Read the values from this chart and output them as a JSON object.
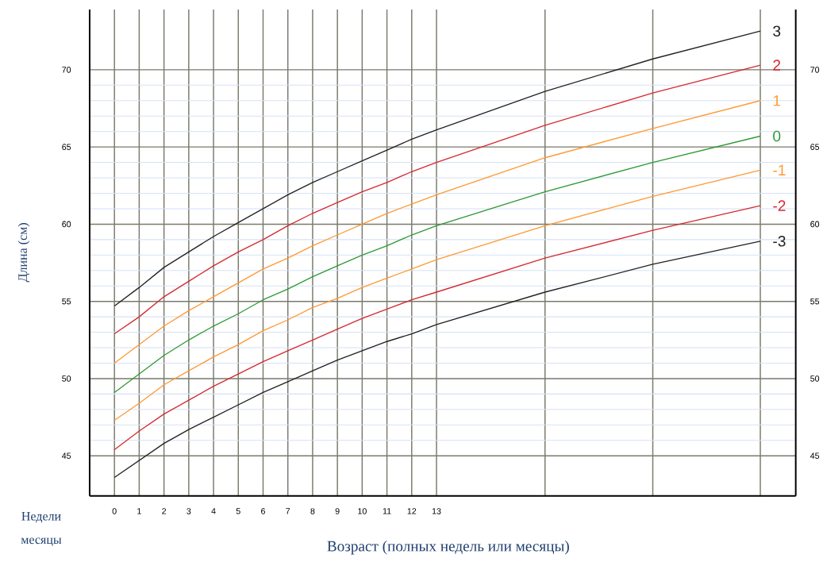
{
  "chart_data": {
    "type": "line",
    "xlabel": "Возраст (полных недель или месяцы)",
    "ylabel": "Длина (см)",
    "annotations": [
      "Недели",
      "месяцы"
    ],
    "x": [
      0,
      1,
      2,
      3,
      4,
      5,
      6,
      7,
      8,
      9,
      10,
      11,
      12,
      13,
      17.38,
      21.73,
      26.07
    ],
    "series": [
      {
        "name": "3",
        "color": "#222222",
        "values": [
          54.7,
          55.9,
          57.2,
          58.2,
          59.2,
          60.1,
          61.0,
          61.9,
          62.7,
          63.4,
          64.1,
          64.8,
          65.5,
          66.1,
          68.6,
          70.7,
          72.5
        ]
      },
      {
        "name": "2",
        "color": "#d42a30",
        "values": [
          52.9,
          54.0,
          55.3,
          56.3,
          57.3,
          58.2,
          59.0,
          59.9,
          60.7,
          61.4,
          62.1,
          62.7,
          63.4,
          64.0,
          66.4,
          68.5,
          70.3
        ]
      },
      {
        "name": "1",
        "color": "#ff9933",
        "values": [
          51.0,
          52.2,
          53.4,
          54.4,
          55.3,
          56.2,
          57.1,
          57.8,
          58.6,
          59.3,
          60.0,
          60.7,
          61.3,
          61.9,
          64.3,
          66.2,
          68.0
        ]
      },
      {
        "name": "0",
        "color": "#2e9a34",
        "values": [
          49.1,
          50.3,
          51.5,
          52.5,
          53.4,
          54.2,
          55.1,
          55.8,
          56.6,
          57.3,
          58.0,
          58.6,
          59.3,
          59.9,
          62.1,
          64.0,
          65.7
        ]
      },
      {
        "name": "-1",
        "color": "#ff9933",
        "values": [
          47.3,
          48.4,
          49.6,
          50.5,
          51.4,
          52.2,
          53.1,
          53.8,
          54.6,
          55.2,
          55.9,
          56.5,
          57.1,
          57.7,
          59.9,
          61.8,
          63.5
        ]
      },
      {
        "name": "-2",
        "color": "#d42a30",
        "values": [
          45.4,
          46.6,
          47.7,
          48.6,
          49.5,
          50.3,
          51.1,
          51.8,
          52.5,
          53.2,
          53.9,
          54.5,
          55.1,
          55.6,
          57.8,
          59.6,
          61.2
        ]
      },
      {
        "name": "-3",
        "color": "#222222",
        "values": [
          43.6,
          44.7,
          45.8,
          46.7,
          47.5,
          48.3,
          49.1,
          49.8,
          50.5,
          51.2,
          51.8,
          52.4,
          52.9,
          53.5,
          55.6,
          57.4,
          58.9
        ]
      }
    ],
    "xlim": [
      -1,
      27.5
    ],
    "xticks": [
      0,
      1,
      2,
      3,
      4,
      5,
      6,
      7,
      8,
      9,
      10,
      11,
      12,
      13,
      {
        "value": 17.38,
        "label": null
      },
      {
        "value": 21.73,
        "label": null
      },
      {
        "value": 26.07,
        "label": null
      }
    ],
    "ylim": [
      42.4,
      73.9
    ],
    "yticks": [
      45,
      50,
      55,
      60,
      65,
      70
    ],
    "y2lim": [
      42.4,
      73.9
    ],
    "y2ticks": [
      45,
      50,
      55,
      60,
      65,
      70
    ],
    "grid": true
  }
}
